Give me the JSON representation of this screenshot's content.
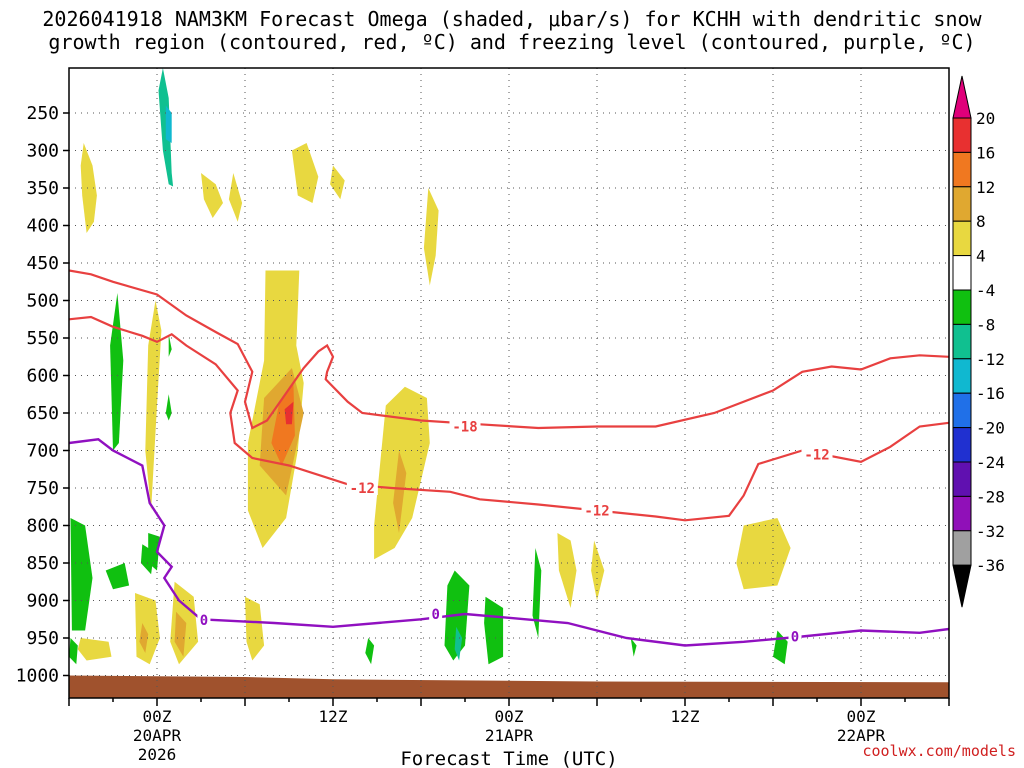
{
  "title_line1": "2026041918 NAM3KM Forecast Omega (shaded, μbar/s) for KCHH with dendritic snow",
  "title_line2": "growth region (contoured, red, ºC) and freezing level (contoured, purple, ºC)",
  "credit": "coolwx.com/models",
  "chart_data": {
    "type": "time-height cross section",
    "xlabel": "Forecast Time (UTC)",
    "x_ticks": [
      {
        "hour": 6,
        "lines": [
          "00Z",
          "20APR",
          "2026"
        ]
      },
      {
        "hour": 18,
        "lines": [
          "12Z"
        ]
      },
      {
        "hour": 30,
        "lines": [
          "00Z",
          "21APR"
        ]
      },
      {
        "hour": 42,
        "lines": [
          "12Z"
        ]
      },
      {
        "hour": 54,
        "lines": [
          "00Z",
          "22APR"
        ]
      }
    ],
    "x_range_hours": [
      0,
      60
    ],
    "y_ticks_hpa": [
      250,
      300,
      350,
      400,
      450,
      500,
      550,
      600,
      650,
      700,
      750,
      800,
      850,
      900,
      950,
      1000
    ],
    "y_range_hpa": [
      190,
      1030
    ],
    "grid": "dotted",
    "colorbar": {
      "unit": "μbar/s",
      "levels": [
        "20",
        "16",
        "12",
        "8",
        "4",
        "-4",
        "-8",
        "-12",
        "-16",
        "-20",
        "-24",
        "-28",
        "-32",
        "-36"
      ],
      "colors": [
        "#e0007a",
        "#e83030",
        "#f07820",
        "#e0a830",
        "#e8d840",
        "#ffffff",
        "#10c010",
        "#10c090",
        "#10b8d0",
        "#2070e8",
        "#2030d0",
        "#6010b0",
        "#9010b8",
        "#a0a0a0",
        "#000000"
      ]
    },
    "contour_labels": {
      "dgz_upper": "-18",
      "dgz_lower": "-12",
      "freezing": "0"
    },
    "contours": {
      "dgz_upper": [
        [
          0,
          460
        ],
        [
          1.5,
          465
        ],
        [
          3,
          475
        ],
        [
          6,
          492
        ],
        [
          8,
          520
        ],
        [
          10,
          542
        ],
        [
          11.5,
          558
        ],
        [
          12.5,
          595
        ],
        [
          12,
          635
        ],
        [
          12.5,
          670
        ],
        [
          13.5,
          660
        ],
        [
          16,
          590
        ],
        [
          17,
          568
        ],
        [
          17.6,
          560
        ],
        [
          18,
          575
        ],
        [
          17.6,
          595
        ],
        [
          17.5,
          605
        ],
        [
          19,
          635
        ],
        [
          20,
          650
        ],
        [
          24,
          660
        ],
        [
          28,
          665
        ],
        [
          32,
          670
        ],
        [
          36,
          668
        ],
        [
          40,
          668
        ],
        [
          44,
          650
        ],
        [
          48,
          620
        ],
        [
          50,
          595
        ],
        [
          52,
          588
        ],
        [
          54,
          592
        ],
        [
          56,
          577
        ],
        [
          58,
          573
        ],
        [
          60,
          575
        ]
      ],
      "dgz_lower": [
        [
          0,
          525
        ],
        [
          1.5,
          522
        ],
        [
          3,
          535
        ],
        [
          5,
          547
        ],
        [
          6,
          555
        ],
        [
          7,
          545
        ],
        [
          8,
          560
        ],
        [
          10,
          585
        ],
        [
          11.5,
          620
        ],
        [
          11,
          650
        ],
        [
          11.3,
          690
        ],
        [
          12.5,
          710
        ],
        [
          15,
          720
        ],
        [
          19,
          745
        ],
        [
          22,
          750
        ],
        [
          26,
          755
        ],
        [
          28,
          765
        ],
        [
          32,
          772
        ],
        [
          36,
          780
        ],
        [
          40,
          788
        ],
        [
          42,
          793
        ],
        [
          45,
          787
        ],
        [
          46,
          760
        ],
        [
          47,
          718
        ],
        [
          50,
          700
        ],
        [
          54,
          715
        ],
        [
          56,
          695
        ],
        [
          58,
          668
        ],
        [
          60,
          663
        ]
      ],
      "freezing": [
        [
          0,
          690
        ],
        [
          2,
          685
        ],
        [
          3,
          700
        ],
        [
          5,
          720
        ],
        [
          5.5,
          770
        ],
        [
          6.5,
          800
        ],
        [
          6,
          835
        ],
        [
          7,
          855
        ],
        [
          6.5,
          870
        ],
        [
          7.5,
          900
        ],
        [
          9,
          925
        ],
        [
          14,
          930
        ],
        [
          18,
          935
        ],
        [
          24,
          925
        ],
        [
          27,
          918
        ],
        [
          30,
          923
        ],
        [
          34,
          930
        ],
        [
          38,
          950
        ],
        [
          42,
          960
        ],
        [
          46,
          955
        ],
        [
          50,
          948
        ],
        [
          54,
          940
        ],
        [
          58,
          943
        ],
        [
          60,
          938
        ]
      ]
    },
    "regions": [
      {
        "level": "-8",
        "pts": [
          [
            6.4,
            190
          ],
          [
            6.8,
            230
          ],
          [
            7.0,
            330
          ],
          [
            7.1,
            348
          ],
          [
            6.8,
            345
          ],
          [
            6.4,
            300
          ],
          [
            6.1,
            220
          ]
        ]
      },
      {
        "level": "-12",
        "pts": [
          [
            6.6,
            240
          ],
          [
            7.0,
            250
          ],
          [
            7.0,
            290
          ],
          [
            6.6,
            285
          ]
        ]
      },
      {
        "level": "4",
        "pts": [
          [
            1.0,
            290
          ],
          [
            1.6,
            320
          ],
          [
            1.9,
            360
          ],
          [
            1.7,
            395
          ],
          [
            1.2,
            410
          ],
          [
            0.9,
            360
          ],
          [
            0.8,
            320
          ]
        ]
      },
      {
        "level": "4",
        "pts": [
          [
            9.0,
            330
          ],
          [
            10.0,
            345
          ],
          [
            10.5,
            370
          ],
          [
            9.8,
            390
          ],
          [
            9.2,
            365
          ]
        ]
      },
      {
        "level": "4",
        "pts": [
          [
            11.2,
            330
          ],
          [
            11.8,
            370
          ],
          [
            11.5,
            395
          ],
          [
            10.9,
            365
          ]
        ]
      },
      {
        "level": "4",
        "pts": [
          [
            15.2,
            300
          ],
          [
            16.2,
            290
          ],
          [
            17.0,
            335
          ],
          [
            16.6,
            370
          ],
          [
            15.6,
            360
          ]
        ]
      },
      {
        "level": "4",
        "pts": [
          [
            18.0,
            320
          ],
          [
            18.8,
            340
          ],
          [
            18.5,
            365
          ],
          [
            17.8,
            345
          ]
        ]
      },
      {
        "level": "4",
        "pts": [
          [
            13.4,
            460
          ],
          [
            15.7,
            460
          ],
          [
            15.5,
            560
          ],
          [
            16.0,
            610
          ],
          [
            15.6,
            700
          ],
          [
            14.8,
            790
          ],
          [
            13.2,
            830
          ],
          [
            12.2,
            780
          ],
          [
            12.2,
            690
          ],
          [
            13.3,
            580
          ]
        ]
      },
      {
        "level": "4",
        "pts": [
          [
            24.5,
            350
          ],
          [
            25.2,
            380
          ],
          [
            25.0,
            440
          ],
          [
            24.6,
            480
          ],
          [
            24.2,
            430
          ]
        ]
      },
      {
        "level": "4",
        "pts": [
          [
            5.9,
            500
          ],
          [
            6.3,
            540
          ],
          [
            6.0,
            640
          ],
          [
            5.6,
            780
          ],
          [
            5.2,
            700
          ],
          [
            5.4,
            560
          ]
        ]
      },
      {
        "level": "4",
        "pts": [
          [
            21.6,
            640
          ],
          [
            22.9,
            615
          ],
          [
            24.4,
            630
          ],
          [
            24.6,
            690
          ],
          [
            23.4,
            790
          ],
          [
            22.2,
            830
          ],
          [
            20.8,
            845
          ],
          [
            20.8,
            800
          ]
        ]
      },
      {
        "level": "4",
        "pts": [
          [
            33.3,
            810
          ],
          [
            34.2,
            820
          ],
          [
            34.6,
            860
          ],
          [
            34.2,
            910
          ],
          [
            33.4,
            860
          ]
        ]
      },
      {
        "level": "4",
        "pts": [
          [
            35.8,
            820
          ],
          [
            36.5,
            860
          ],
          [
            36.0,
            900
          ],
          [
            35.6,
            860
          ]
        ]
      },
      {
        "level": "4",
        "pts": [
          [
            46.0,
            800
          ],
          [
            48.3,
            790
          ],
          [
            49.2,
            830
          ],
          [
            48.3,
            880
          ],
          [
            46.0,
            885
          ],
          [
            45.5,
            850
          ]
        ]
      },
      {
        "level": "4",
        "pts": [
          [
            0.8,
            950
          ],
          [
            2.7,
            955
          ],
          [
            2.9,
            975
          ],
          [
            1.2,
            980
          ],
          [
            0.6,
            965
          ]
        ]
      },
      {
        "level": "4",
        "pts": [
          [
            4.5,
            890
          ],
          [
            5.9,
            900
          ],
          [
            6.2,
            950
          ],
          [
            5.5,
            985
          ],
          [
            4.6,
            975
          ]
        ]
      },
      {
        "level": "4",
        "pts": [
          [
            7.2,
            875
          ],
          [
            8.5,
            895
          ],
          [
            8.8,
            955
          ],
          [
            7.5,
            985
          ],
          [
            6.9,
            955
          ]
        ]
      },
      {
        "level": "4",
        "pts": [
          [
            12.0,
            895
          ],
          [
            13.0,
            905
          ],
          [
            13.3,
            960
          ],
          [
            12.5,
            980
          ],
          [
            12.1,
            955
          ]
        ]
      },
      {
        "level": "8",
        "pts": [
          [
            13.3,
            630
          ],
          [
            15.2,
            590
          ],
          [
            16.0,
            650
          ],
          [
            14.8,
            760
          ],
          [
            13.0,
            720
          ]
        ]
      },
      {
        "level": "12",
        "pts": [
          [
            14.3,
            640
          ],
          [
            15.3,
            610
          ],
          [
            15.4,
            680
          ],
          [
            14.5,
            720
          ],
          [
            13.8,
            690
          ]
        ]
      },
      {
        "level": "16",
        "pts": [
          [
            14.7,
            645
          ],
          [
            15.3,
            635
          ],
          [
            15.2,
            665
          ],
          [
            14.8,
            665
          ]
        ]
      },
      {
        "level": "8",
        "pts": [
          [
            22.5,
            700
          ],
          [
            23.0,
            730
          ],
          [
            22.5,
            810
          ],
          [
            22.1,
            770
          ]
        ]
      },
      {
        "level": "8",
        "pts": [
          [
            5.0,
            930
          ],
          [
            5.4,
            945
          ],
          [
            5.2,
            970
          ],
          [
            4.8,
            955
          ]
        ]
      },
      {
        "level": "8",
        "pts": [
          [
            7.3,
            915
          ],
          [
            8.0,
            930
          ],
          [
            7.8,
            975
          ],
          [
            7.2,
            955
          ]
        ]
      },
      {
        "level": "-4",
        "pts": [
          [
            3.3,
            490
          ],
          [
            3.7,
            580
          ],
          [
            3.4,
            690
          ],
          [
            3.0,
            700
          ],
          [
            2.8,
            560
          ]
        ]
      },
      {
        "level": "-4",
        "pts": [
          [
            0.1,
            790
          ],
          [
            1.1,
            800
          ],
          [
            1.6,
            870
          ],
          [
            1.1,
            940
          ],
          [
            0.2,
            940
          ]
        ]
      },
      {
        "level": "-4",
        "pts": [
          [
            2.5,
            860
          ],
          [
            3.8,
            850
          ],
          [
            4.1,
            880
          ],
          [
            3.0,
            885
          ]
        ]
      },
      {
        "level": "-4",
        "pts": [
          [
            5.4,
            810
          ],
          [
            6.2,
            815
          ],
          [
            6.0,
            860
          ],
          [
            5.4,
            850
          ]
        ]
      },
      {
        "level": "-4",
        "pts": [
          [
            5.0,
            825
          ],
          [
            5.8,
            835
          ],
          [
            5.6,
            865
          ],
          [
            4.9,
            850
          ]
        ]
      },
      {
        "level": "-4",
        "pts": [
          [
            6.8,
            625
          ],
          [
            7.0,
            650
          ],
          [
            6.8,
            660
          ],
          [
            6.6,
            650
          ]
        ]
      },
      {
        "level": "-4",
        "pts": [
          [
            6.8,
            545
          ],
          [
            7.0,
            565
          ],
          [
            6.8,
            575
          ]
        ]
      },
      {
        "level": "-4",
        "pts": [
          [
            26.3,
            860
          ],
          [
            27.3,
            880
          ],
          [
            27.0,
            960
          ],
          [
            26.2,
            980
          ],
          [
            25.6,
            960
          ],
          [
            25.8,
            880
          ]
        ]
      },
      {
        "level": "-4",
        "pts": [
          [
            28.4,
            895
          ],
          [
            29.6,
            910
          ],
          [
            29.6,
            975
          ],
          [
            28.6,
            985
          ],
          [
            28.3,
            930
          ]
        ]
      },
      {
        "level": "-4",
        "pts": [
          [
            31.8,
            830
          ],
          [
            32.2,
            860
          ],
          [
            32.0,
            950
          ],
          [
            31.6,
            920
          ]
        ]
      },
      {
        "level": "-4",
        "pts": [
          [
            20.4,
            950
          ],
          [
            20.8,
            960
          ],
          [
            20.6,
            985
          ],
          [
            20.2,
            970
          ]
        ]
      },
      {
        "level": "-4",
        "pts": [
          [
            0.1,
            950
          ],
          [
            0.6,
            960
          ],
          [
            0.5,
            985
          ],
          [
            0.0,
            975
          ]
        ]
      },
      {
        "level": "-4",
        "pts": [
          [
            48.3,
            940
          ],
          [
            49.0,
            955
          ],
          [
            48.8,
            985
          ],
          [
            48.0,
            975
          ]
        ]
      },
      {
        "level": "-4",
        "pts": [
          [
            38.3,
            950
          ],
          [
            38.7,
            960
          ],
          [
            38.5,
            975
          ]
        ]
      },
      {
        "level": "-8",
        "pts": [
          [
            26.4,
            935
          ],
          [
            26.8,
            950
          ],
          [
            26.6,
            980
          ],
          [
            26.3,
            965
          ]
        ]
      }
    ],
    "terrain_color": "#a0522d"
  }
}
